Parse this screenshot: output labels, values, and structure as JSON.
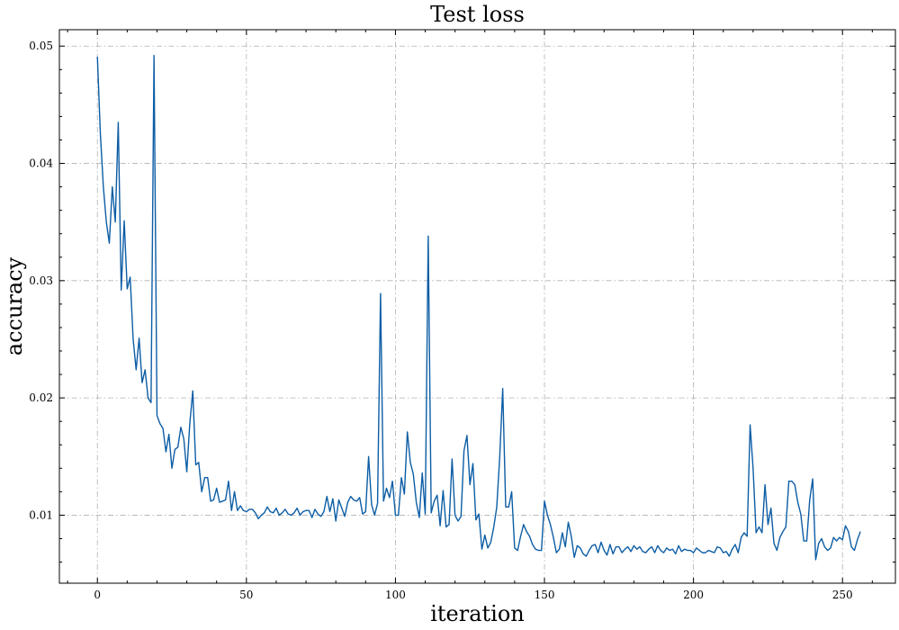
{
  "chart_data": {
    "type": "line",
    "title": "Test loss",
    "xlabel": "iteration",
    "ylabel": "accuracy",
    "xlim": [
      -12.75,
      267.75
    ],
    "ylim": [
      0.0042,
      0.0514
    ],
    "xticks": [
      0,
      50,
      100,
      150,
      200,
      250
    ],
    "xtick_labels": [
      "0",
      "50",
      "100",
      "150",
      "200",
      "250"
    ],
    "yticks": [
      0.01,
      0.02,
      0.03,
      0.04,
      0.05
    ],
    "ytick_labels": [
      "0.01",
      "0.02",
      "0.03",
      "0.04",
      "0.05"
    ],
    "grid": true,
    "series_color": "#0c5da5",
    "x_start": 0,
    "x_step": 1,
    "y": [
      0.0491,
      0.0425,
      0.038,
      0.035,
      0.0332,
      0.038,
      0.035,
      0.0435,
      0.0292,
      0.0351,
      0.0293,
      0.0303,
      0.025,
      0.0224,
      0.0251,
      0.0213,
      0.0224,
      0.02,
      0.0196,
      0.0492,
      0.0185,
      0.0178,
      0.0174,
      0.0154,
      0.0169,
      0.014,
      0.0156,
      0.0158,
      0.0175,
      0.0165,
      0.0137,
      0.0178,
      0.0206,
      0.0143,
      0.0145,
      0.012,
      0.0132,
      0.0132,
      0.0112,
      0.0113,
      0.0123,
      0.0111,
      0.0112,
      0.0113,
      0.0129,
      0.0104,
      0.012,
      0.0104,
      0.0108,
      0.0104,
      0.0103,
      0.0105,
      0.0105,
      0.0102,
      0.0097,
      0.01,
      0.0102,
      0.0107,
      0.0103,
      0.0102,
      0.0106,
      0.01,
      0.0102,
      0.0105,
      0.0101,
      0.01,
      0.0102,
      0.0106,
      0.01,
      0.0103,
      0.0104,
      0.0104,
      0.0098,
      0.0105,
      0.0101,
      0.0099,
      0.0103,
      0.0116,
      0.0103,
      0.0114,
      0.0095,
      0.0113,
      0.0106,
      0.0099,
      0.0111,
      0.0116,
      0.0113,
      0.0112,
      0.0115,
      0.0101,
      0.0103,
      0.015,
      0.0109,
      0.01,
      0.011,
      0.0289,
      0.0112,
      0.0123,
      0.0115,
      0.0129,
      0.01,
      0.01,
      0.0132,
      0.0118,
      0.0171,
      0.0145,
      0.0135,
      0.0111,
      0.0098,
      0.0136,
      0.0101,
      0.0338,
      0.0102,
      0.0112,
      0.0117,
      0.0091,
      0.0121,
      0.009,
      0.0092,
      0.0148,
      0.01,
      0.0095,
      0.0099,
      0.0155,
      0.0168,
      0.0126,
      0.0144,
      0.0096,
      0.0101,
      0.0071,
      0.0083,
      0.0072,
      0.0077,
      0.009,
      0.0107,
      0.015,
      0.0208,
      0.0107,
      0.0107,
      0.012,
      0.0072,
      0.007,
      0.0082,
      0.0092,
      0.0086,
      0.0082,
      0.0075,
      0.0071,
      0.007,
      0.007,
      0.0112,
      0.01,
      0.0092,
      0.0081,
      0.0068,
      0.0071,
      0.0085,
      0.0073,
      0.0094,
      0.0082,
      0.0064,
      0.0074,
      0.0072,
      0.0067,
      0.0065,
      0.007,
      0.0074,
      0.0075,
      0.0068,
      0.0077,
      0.007,
      0.0066,
      0.0075,
      0.0067,
      0.0073,
      0.0073,
      0.0068,
      0.0071,
      0.0073,
      0.0069,
      0.0074,
      0.0071,
      0.0073,
      0.0069,
      0.0068,
      0.0071,
      0.0073,
      0.0068,
      0.0074,
      0.007,
      0.0068,
      0.0072,
      0.007,
      0.0071,
      0.0067,
      0.0074,
      0.0069,
      0.0071,
      0.007,
      0.007,
      0.0068,
      0.0072,
      0.007,
      0.0068,
      0.0068,
      0.007,
      0.0069,
      0.0068,
      0.0073,
      0.0072,
      0.0068,
      0.0069,
      0.0065,
      0.0071,
      0.0075,
      0.0068,
      0.0081,
      0.0085,
      0.0082,
      0.0177,
      0.014,
      0.0085,
      0.009,
      0.0085,
      0.0126,
      0.0092,
      0.0106,
      0.0076,
      0.007,
      0.0081,
      0.0086,
      0.009,
      0.0129,
      0.0129,
      0.0126,
      0.0111,
      0.0101,
      0.0078,
      0.0078,
      0.0113,
      0.0131,
      0.0062,
      0.0076,
      0.008,
      0.0073,
      0.007,
      0.0072,
      0.0081,
      0.0078,
      0.0081,
      0.0079,
      0.0091,
      0.0086,
      0.0073,
      0.007,
      0.0079,
      0.0086
    ]
  }
}
